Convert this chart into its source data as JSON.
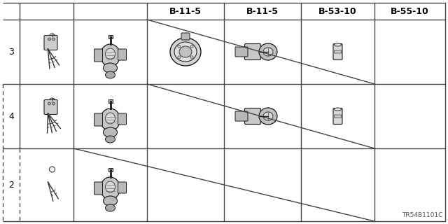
{
  "watermark": "TR54B1101C",
  "background_color": "#ffffff",
  "line_color": "#444444",
  "header_labels": [
    "B-11-5",
    "B-11-5",
    "B-53-10",
    "B-55-10"
  ],
  "row_labels": [
    "3",
    "4",
    "2"
  ],
  "col_edges": [
    4,
    28,
    105,
    210,
    320,
    430,
    535,
    636
  ],
  "row_edges_img": [
    4,
    28,
    120,
    212,
    316
  ],
  "diag_row4_col3to5": [
    [
      320,
      28,
      636,
      120
    ]
  ],
  "diag_row2_col3to5": [
    [
      320,
      120,
      636,
      212
    ]
  ],
  "diag_row2_col2to5_big": [
    [
      210,
      212,
      636,
      316
    ]
  ],
  "header_fontsize": 9,
  "label_fontsize": 9
}
